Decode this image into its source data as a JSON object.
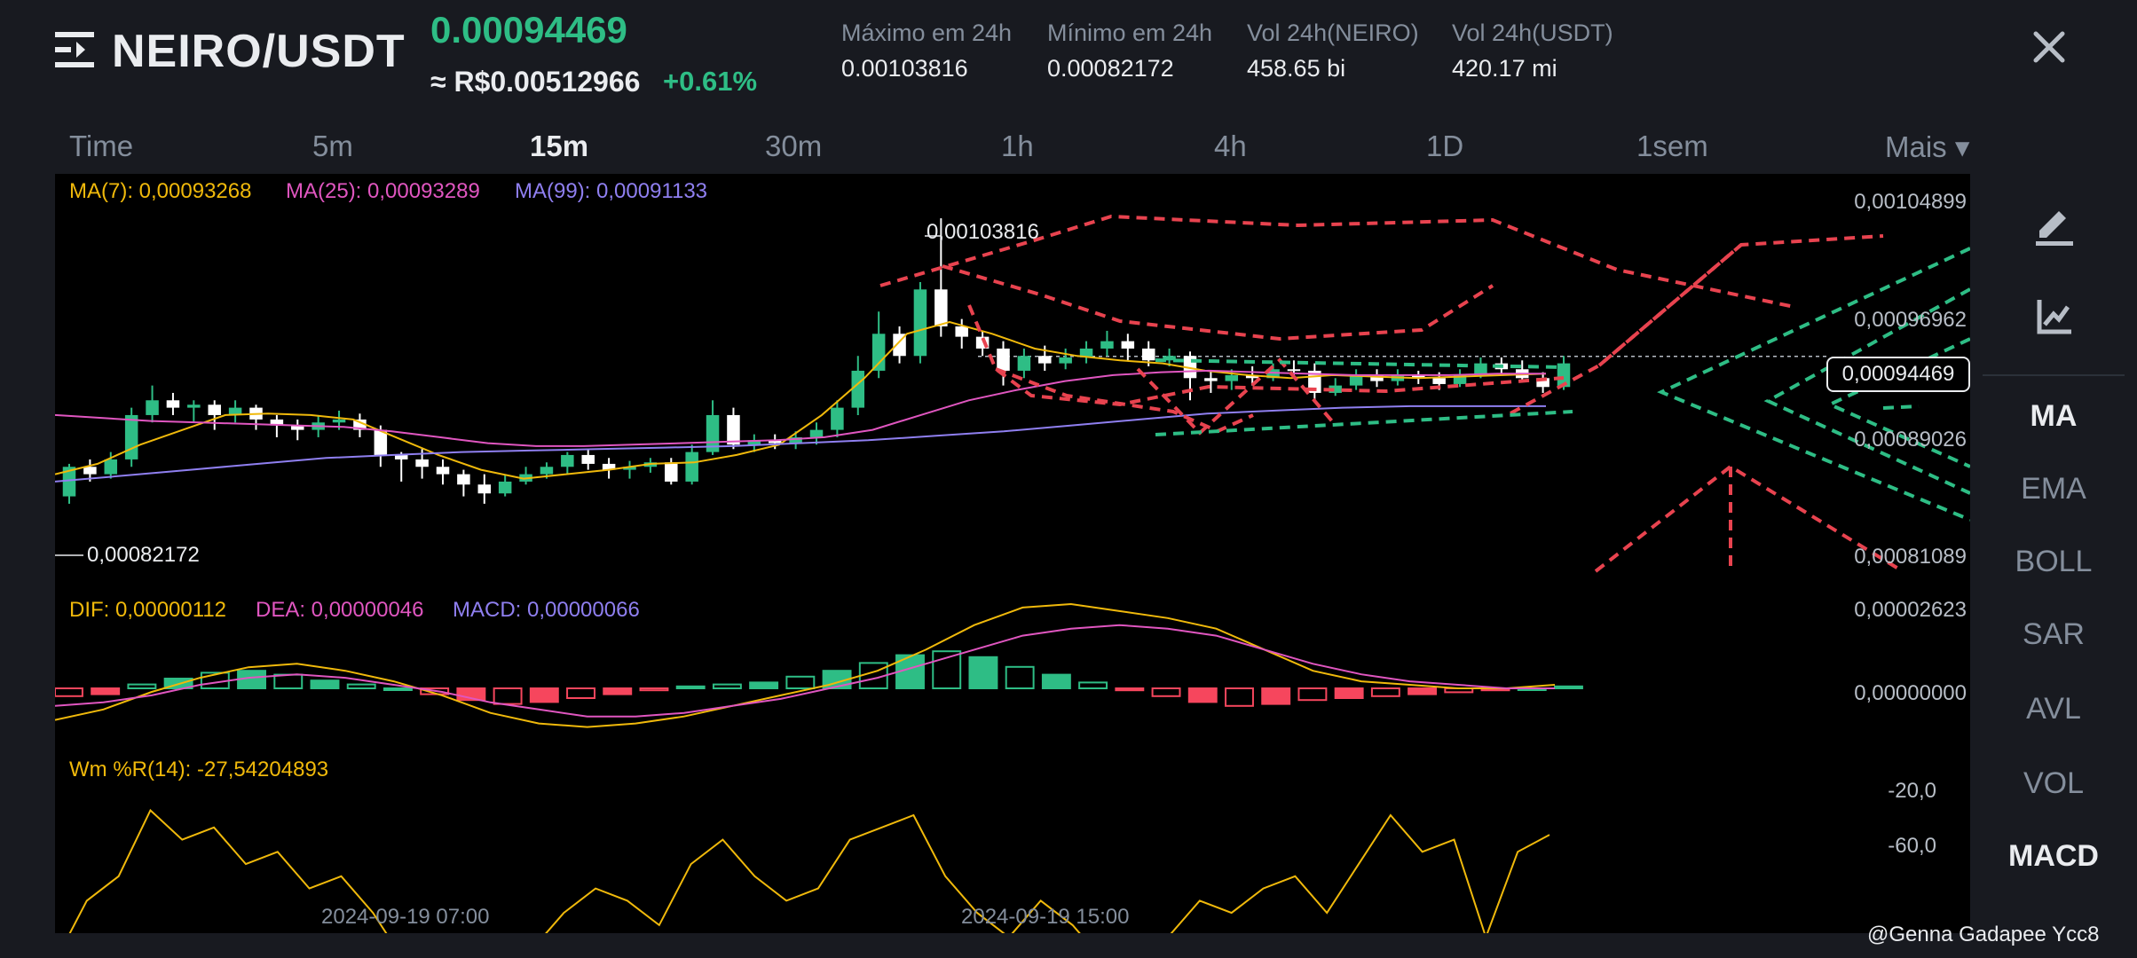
{
  "header": {
    "pair": "NEIRO/USDT",
    "price": "0.00094469",
    "price_brl": "≈ R$0.00512966",
    "change": "+0.61%",
    "stats": [
      {
        "label": "Máximo em 24h",
        "value": "0.00103816"
      },
      {
        "label": "Mínimo em 24h",
        "value": "0.00082172"
      },
      {
        "label": "Vol 24h(NEIRO)",
        "value": "458.65 bi"
      },
      {
        "label": "Vol 24h(USDT)",
        "value": "420.17 mi"
      }
    ]
  },
  "timeframes": [
    "Time",
    "5m",
    "15m",
    "30m",
    "1h",
    "4h",
    "1D",
    "1sem",
    "Mais ▾"
  ],
  "active_timeframe": "15m",
  "indicators": {
    "ma7": "MA(7): 0,00093268",
    "ma25": "MA(25): 0,00093289",
    "ma99": "MA(99): 0,00091133",
    "dif": "DIF: 0,00000112",
    "dea": "DEA: 0,00000046",
    "macd": "MACD: 0,00000066",
    "wr": "Wm %R(14): -27,54204893"
  },
  "price_axis": [
    "0,00104899",
    "0,00096962",
    "0,00089026",
    "0,00081089"
  ],
  "current_price_tag": "0,00094469",
  "high_marker": "0,00103816",
  "low_marker": "0,00082172",
  "macd_axis": [
    "0,00002623",
    "0,00000000"
  ],
  "wr_axis": [
    "-20,0",
    "-60,0"
  ],
  "x_axis": [
    "2024-09-19 07:00",
    "2024-09-19 15:00"
  ],
  "sidebar": [
    "MA",
    "EMA",
    "BOLL",
    "SAR",
    "AVL",
    "VOL",
    "MACD"
  ],
  "watermark": "@Genna Gadapee Ycc8",
  "colors": {
    "up": "#2ebd85",
    "down": "#f6465d",
    "ma7": "#f0b90b",
    "ma25": "#e056c0",
    "ma99": "#8f7ff0",
    "drawing_red": "#e8434f",
    "drawing_green": "#2ebd85"
  },
  "chart_data": {
    "type": "candlestick",
    "price_range": [
      0.00081089,
      0.00104899
    ],
    "high": 0.00103816,
    "low": 0.00082172,
    "last": 0.00094469,
    "candles": [
      [
        0.00085,
        0.00087,
        0.000845,
        0.000872
      ],
      [
        0.00087,
        0.000865,
        0.00086,
        0.000875
      ],
      [
        0.000865,
        0.000875,
        0.000862,
        0.00088
      ],
      [
        0.000875,
        0.000905,
        0.00087,
        0.00091
      ],
      [
        0.000905,
        0.000915,
        0.0009,
        0.000925
      ],
      [
        0.000915,
        0.00091,
        0.000905,
        0.00092
      ],
      [
        0.00091,
        0.000912,
        0.0009,
        0.000915
      ],
      [
        0.000912,
        0.000905,
        0.000895,
        0.000915
      ],
      [
        0.000905,
        0.00091,
        0.0009,
        0.000915
      ],
      [
        0.00091,
        0.000902,
        0.000895,
        0.000912
      ],
      [
        0.000902,
        0.000898,
        0.00089,
        0.000905
      ],
      [
        0.000898,
        0.000895,
        0.000888,
        0.000902
      ],
      [
        0.000895,
        0.0009,
        0.00089,
        0.000905
      ],
      [
        0.0009,
        0.000902,
        0.000895,
        0.000908
      ],
      [
        0.000902,
        0.000895,
        0.00089,
        0.000906
      ],
      [
        0.000895,
        0.000878,
        0.00087,
        0.000898
      ],
      [
        0.000878,
        0.000875,
        0.00086,
        0.00088
      ],
      [
        0.000875,
        0.00087,
        0.000862,
        0.000882
      ],
      [
        0.00087,
        0.000865,
        0.000858,
        0.000875
      ],
      [
        0.000865,
        0.000858,
        0.00085,
        0.000868
      ],
      [
        0.000858,
        0.000852,
        0.000845,
        0.000865
      ],
      [
        0.000852,
        0.00086,
        0.00085,
        0.000865
      ],
      [
        0.00086,
        0.000865,
        0.000858,
        0.00087
      ],
      [
        0.000865,
        0.00087,
        0.000862,
        0.000873
      ],
      [
        0.00087,
        0.000878,
        0.000865,
        0.00088
      ],
      [
        0.000878,
        0.000872,
        0.000868,
        0.000882
      ],
      [
        0.000872,
        0.000868,
        0.000862,
        0.000876
      ],
      [
        0.000868,
        0.00087,
        0.000862,
        0.000874
      ],
      [
        0.00087,
        0.000873,
        0.000866,
        0.000876
      ],
      [
        0.000873,
        0.00086,
        0.000858,
        0.000876
      ],
      [
        0.00086,
        0.00088,
        0.000858,
        0.000885
      ],
      [
        0.00088,
        0.000905,
        0.000878,
        0.000915
      ],
      [
        0.000905,
        0.000885,
        0.000882,
        0.00091
      ],
      [
        0.000885,
        0.000888,
        0.00088,
        0.000892
      ],
      [
        0.000888,
        0.000886,
        0.000882,
        0.000892
      ],
      [
        0.000886,
        0.00089,
        0.000882,
        0.000894
      ],
      [
        0.00089,
        0.000895,
        0.000885,
        0.0009
      ],
      [
        0.000895,
        0.00091,
        0.00089,
        0.000915
      ],
      [
        0.00091,
        0.000935,
        0.000905,
        0.000945
      ],
      [
        0.000935,
        0.00096,
        0.00093,
        0.000975
      ],
      [
        0.00096,
        0.000945,
        0.00094,
        0.000965
      ],
      [
        0.000945,
        0.00099,
        0.00094,
        0.000995
      ],
      [
        0.00099,
        0.000965,
        0.000958,
        0.001038
      ],
      [
        0.000965,
        0.000958,
        0.00095,
        0.00097
      ],
      [
        0.000958,
        0.00095,
        0.000945,
        0.000962
      ],
      [
        0.00095,
        0.000935,
        0.000925,
        0.000955
      ],
      [
        0.000935,
        0.000945,
        0.00093,
        0.00095
      ],
      [
        0.000945,
        0.00094,
        0.000935,
        0.000952
      ],
      [
        0.00094,
        0.000944,
        0.000936,
        0.00095
      ],
      [
        0.000944,
        0.00095,
        0.00094,
        0.000955
      ],
      [
        0.00095,
        0.000955,
        0.000945,
        0.000962
      ],
      [
        0.000955,
        0.00095,
        0.000942,
        0.00096
      ],
      [
        0.00095,
        0.000942,
        0.000938,
        0.000955
      ],
      [
        0.000942,
        0.000945,
        0.000938,
        0.00095
      ],
      [
        0.000945,
        0.00093,
        0.000915,
        0.000948
      ],
      [
        0.00093,
        0.000928,
        0.00092,
        0.000935
      ],
      [
        0.000928,
        0.000932,
        0.000922,
        0.000936
      ],
      [
        0.000932,
        0.00093,
        0.000925,
        0.000938
      ],
      [
        0.00093,
        0.000936,
        0.000928,
        0.00094
      ],
      [
        0.000936,
        0.000935,
        0.00093,
        0.000942
      ],
      [
        0.000935,
        0.00092,
        0.000915,
        0.00094
      ],
      [
        0.00092,
        0.000925,
        0.000918,
        0.00093
      ],
      [
        0.000925,
        0.000932,
        0.000922,
        0.000936
      ],
      [
        0.000932,
        0.000928,
        0.000924,
        0.000936
      ],
      [
        0.000928,
        0.000932,
        0.000925,
        0.000936
      ],
      [
        0.000932,
        0.00093,
        0.000926,
        0.000935
      ],
      [
        0.00093,
        0.000926,
        0.000922,
        0.000934
      ],
      [
        0.000926,
        0.000932,
        0.000924,
        0.000936
      ],
      [
        0.000932,
        0.00094,
        0.00093,
        0.000944
      ],
      [
        0.00094,
        0.000936,
        0.000932,
        0.000944
      ],
      [
        0.000936,
        0.00093,
        0.000928,
        0.000942
      ],
      [
        0.00093,
        0.000924,
        0.00092,
        0.000934
      ],
      [
        0.000924,
        0.00094,
        0.000922,
        0.000945
      ]
    ],
    "ma7": [
      0.000865,
      0.000872,
      0.000885,
      0.000895,
      0.000905,
      0.000906,
      0.000905,
      0.000902,
      0.00089,
      0.000878,
      0.000868,
      0.000862,
      0.000865,
      0.000868,
      0.000872,
      0.000873,
      0.000878,
      0.000885,
      0.000905,
      0.00093,
      0.00096,
      0.000968,
      0.00096,
      0.00095,
      0.000945,
      0.000942,
      0.00094,
      0.000935,
      0.000932,
      0.00093,
      0.000932,
      0.000931,
      0.00093,
      0.000931,
      0.000932,
      0.000933
    ],
    "ma25": [
      0.000905,
      0.000903,
      0.000901,
      0.0009,
      0.000899,
      0.000898,
      0.000897,
      0.000894,
      0.00089,
      0.000886,
      0.000884,
      0.000884,
      0.000885,
      0.000886,
      0.000887,
      0.000888,
      0.00089,
      0.000895,
      0.000905,
      0.000915,
      0.000922,
      0.000928,
      0.000932,
      0.000934,
      0.000935,
      0.000934,
      0.000933,
      0.000932,
      0.000932,
      0.000932,
      0.000933,
      0.000933
    ],
    "ma99": [
      0.00086,
      0.000864,
      0.000868,
      0.000872,
      0.000876,
      0.000878,
      0.00088,
      0.000881,
      0.000882,
      0.000883,
      0.000884,
      0.000886,
      0.000888,
      0.000891,
      0.000894,
      0.000898,
      0.000902,
      0.000906,
      0.000908,
      0.00091,
      0.000911,
      0.000911,
      0.000911
    ],
    "macd_hist": [
      -0.4,
      -0.3,
      0.2,
      0.5,
      0.8,
      0.9,
      0.7,
      0.4,
      0.2,
      0.0,
      -0.3,
      -0.6,
      -0.8,
      -0.7,
      -0.5,
      -0.3,
      -0.1,
      0.1,
      0.2,
      0.3,
      0.6,
      0.9,
      1.3,
      1.7,
      1.9,
      1.6,
      1.1,
      0.7,
      0.3,
      -0.1,
      -0.4,
      -0.7,
      -0.9,
      -0.8,
      -0.6,
      -0.5,
      -0.4,
      -0.3,
      -0.2,
      -0.1,
      0.0,
      0.1
    ],
    "dif": [
      -0.9,
      -0.6,
      -0.1,
      0.3,
      0.6,
      0.7,
      0.5,
      0.2,
      -0.2,
      -0.7,
      -1.0,
      -1.1,
      -1.0,
      -0.8,
      -0.5,
      -0.2,
      0.1,
      0.5,
      1.1,
      1.8,
      2.3,
      2.4,
      2.2,
      2.0,
      1.7,
      1.1,
      0.5,
      0.2,
      0.1,
      0.0,
      0.0,
      0.1
    ],
    "dea": [
      -0.5,
      -0.4,
      -0.2,
      0.1,
      0.3,
      0.4,
      0.3,
      0.1,
      -0.1,
      -0.4,
      -0.6,
      -0.8,
      -0.8,
      -0.7,
      -0.5,
      -0.3,
      0.0,
      0.3,
      0.7,
      1.1,
      1.5,
      1.7,
      1.8,
      1.7,
      1.5,
      1.1,
      0.7,
      0.4,
      0.2,
      0.1,
      0.0,
      0.0
    ],
    "wr": [
      -80,
      -55,
      -45,
      -18,
      -30,
      -25,
      -40,
      -35,
      -50,
      -45,
      -60,
      -80,
      -85,
      -70,
      -90,
      -75,
      -60,
      -50,
      -55,
      -65,
      -40,
      -30,
      -45,
      -55,
      -50,
      -30,
      -25,
      -20,
      -45,
      -60,
      -70,
      -55,
      -65,
      -80,
      -85,
      -70,
      -55,
      -60,
      -50,
      -45,
      -60,
      -40,
      -20,
      -35,
      -30,
      -70,
      -35,
      -28
    ]
  }
}
